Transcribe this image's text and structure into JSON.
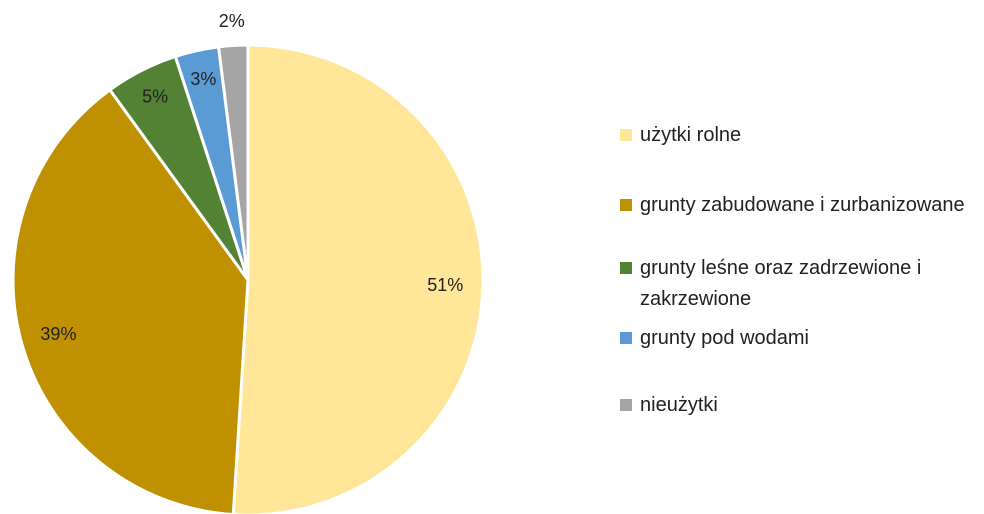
{
  "chart_data": {
    "type": "pie",
    "categories": [
      "użytki rolne",
      "grunty zabudowane i zurbanizowane",
      "grunty leśne oraz zadrzewione i zakrzewione",
      "grunty pod wodami",
      "nieużytki"
    ],
    "values": [
      51,
      39,
      5,
      3,
      2
    ],
    "value_labels": [
      "51%",
      "39%",
      "5%",
      "3%",
      "2%"
    ],
    "colors": [
      "#FFE699",
      "#BF9000",
      "#548235",
      "#5B9BD5",
      "#A5A5A5"
    ],
    "legend": "right"
  }
}
